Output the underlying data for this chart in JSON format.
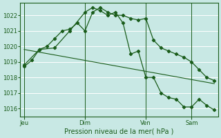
{
  "title": "Pression niveau de la mer( hPa )",
  "bg_color": "#c8e8e4",
  "line_color": "#1a5c1a",
  "grid_color": "#ffffff",
  "ylim": [
    1015.5,
    1022.8
  ],
  "yticks": [
    1016,
    1017,
    1018,
    1019,
    1020,
    1021,
    1022
  ],
  "day_labels": [
    "Jeu",
    "Dim",
    "Ven",
    "Sam"
  ],
  "day_positions": [
    0,
    8,
    16,
    22
  ],
  "xlim": [
    -0.5,
    25.5
  ],
  "series1_x": [
    0,
    1,
    2,
    3,
    4,
    5,
    6,
    7,
    8,
    9,
    10,
    11,
    12,
    13,
    14,
    15,
    16,
    17,
    18,
    19,
    20,
    21,
    22,
    23,
    24,
    25
  ],
  "series1_y": [
    1018.7,
    1019.1,
    1019.8,
    1020.0,
    1020.5,
    1021.0,
    1021.1,
    1021.5,
    1021.0,
    1022.2,
    1022.5,
    1022.2,
    1022.0,
    1022.0,
    1021.8,
    1021.7,
    1021.8,
    1020.4,
    1019.9,
    1019.7,
    1019.5,
    1019.3,
    1019.0,
    1018.5,
    1018.0,
    1017.8
  ],
  "series2_x": [
    0,
    2,
    4,
    6,
    8,
    9,
    10,
    11,
    12,
    13,
    14,
    15,
    16,
    17,
    18,
    19,
    20,
    21,
    22,
    23,
    24,
    25
  ],
  "series2_y": [
    1018.8,
    1019.8,
    1019.9,
    1021.0,
    1022.2,
    1022.5,
    1022.3,
    1022.0,
    1022.2,
    1021.5,
    1019.5,
    1019.7,
    1018.0,
    1018.0,
    1017.0,
    1016.7,
    1016.6,
    1016.1,
    1016.1,
    1016.6,
    1016.2,
    1015.9
  ],
  "trend_x": [
    0,
    25
  ],
  "trend_y": [
    1019.8,
    1017.6
  ]
}
